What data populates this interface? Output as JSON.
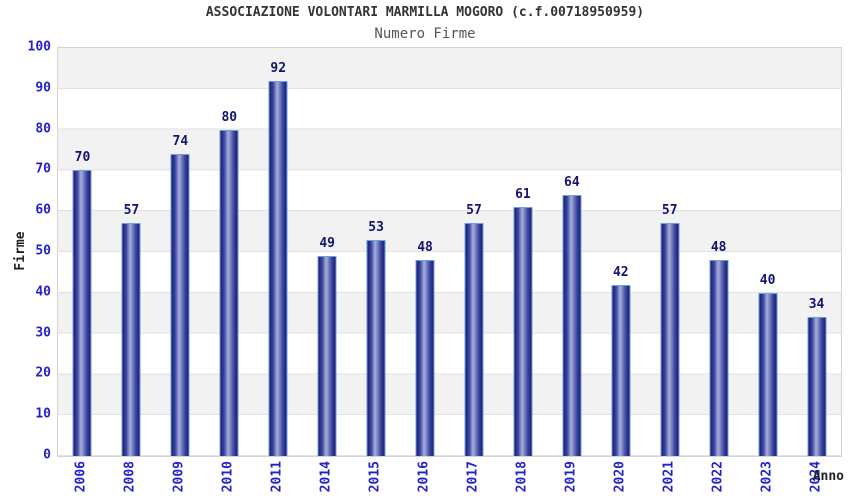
{
  "header": {
    "title": "ASSOCIAZIONE VOLONTARI MARMILLA MOGORO (c.f.00718950959)",
    "subtitle": "Numero Firme"
  },
  "chart_data": {
    "type": "bar",
    "title": "ASSOCIAZIONE VOLONTARI MARMILLA MOGORO (c.f.00718950959)",
    "subtitle": "Numero Firme",
    "xlabel": "Anno",
    "ylabel": "Firme",
    "categories": [
      "2006",
      "2008",
      "2009",
      "2010",
      "2011",
      "2014",
      "2015",
      "2016",
      "2017",
      "2018",
      "2019",
      "2020",
      "2021",
      "2022",
      "2023",
      "2024"
    ],
    "values": [
      70,
      57,
      74,
      80,
      92,
      49,
      53,
      48,
      57,
      61,
      64,
      42,
      57,
      48,
      40,
      34
    ],
    "ylim": [
      0,
      100
    ],
    "yticks": [
      0,
      10,
      20,
      30,
      40,
      50,
      60,
      70,
      80,
      90,
      100
    ],
    "grid": "horizontal-bands-alternating",
    "legend": "none",
    "value_labels": "above-bars",
    "x_tick_rotation": 90,
    "colors": {
      "tick_label": "#2222cc",
      "value_label": "#131370",
      "bar_dark": "#1b1d75",
      "bar_light": "#a7b0da",
      "bar_outline": "#6b9fe0",
      "band_gray": "#f2f2f2",
      "grid_line": "#e2e2e2",
      "title": "#333333",
      "subtitle": "#555555",
      "axis_name": "#222222"
    }
  }
}
